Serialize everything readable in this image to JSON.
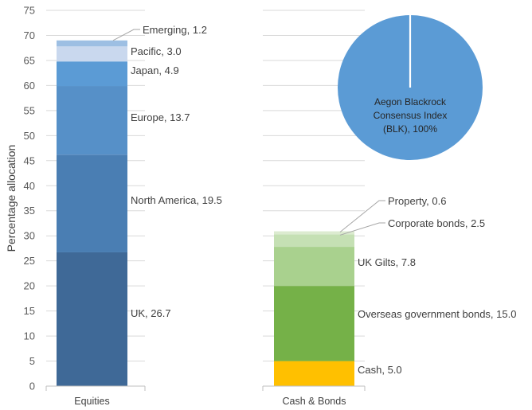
{
  "chart_data": [
    {
      "type": "bar",
      "stacked": true,
      "ylabel": "Percentage allocation",
      "ylim": [
        0,
        75
      ],
      "yticks": [
        "0",
        "5",
        "10",
        "15",
        "20",
        "25",
        "30",
        "35",
        "40",
        "45",
        "50",
        "55",
        "60",
        "65",
        "70",
        "75"
      ],
      "grid": true,
      "categories": [
        "Equities",
        "Cash & Bonds"
      ],
      "series": [
        {
          "name": "UK",
          "label": "UK, 26.7",
          "category": "Equities",
          "value": 26.7,
          "color": "#3F6997"
        },
        {
          "name": "North America",
          "label": "North America, 19.5",
          "category": "Equities",
          "value": 19.5,
          "color": "#4A7EB3"
        },
        {
          "name": "Europe",
          "label": "Europe, 13.7",
          "category": "Equities",
          "value": 13.7,
          "color": "#5690C8"
        },
        {
          "name": "Japan",
          "label": "Japan, 4.9",
          "category": "Equities",
          "value": 4.9,
          "color": "#5B9BD5"
        },
        {
          "name": "Pacific",
          "label": "Pacific, 3.0",
          "category": "Equities",
          "value": 3.0,
          "color": "#C9D8EE"
        },
        {
          "name": "Emerging",
          "label": "Emerging, 1.2",
          "category": "Equities",
          "value": 1.2,
          "color": "#9DBFE3"
        },
        {
          "name": "Cash",
          "label": "Cash, 5.0",
          "category": "Cash & Bonds",
          "value": 5.0,
          "color": "#FFC000"
        },
        {
          "name": "Overseas government bonds",
          "label": "Overseas government bonds, 15.0",
          "category": "Cash & Bonds",
          "value": 15.0,
          "color": "#75B148"
        },
        {
          "name": "UK Gilts",
          "label": "UK Gilts, 7.8",
          "category": "Cash & Bonds",
          "value": 7.8,
          "color": "#A9D18E"
        },
        {
          "name": "Corporate bonds",
          "label": "Corporate bonds, 2.5",
          "category": "Cash & Bonds",
          "value": 2.5,
          "color": "#C5E0B4"
        },
        {
          "name": "Property",
          "label": "Property, 0.6",
          "category": "Cash & Bonds",
          "value": 0.6,
          "color": "#DCEBD0"
        }
      ]
    },
    {
      "type": "pie",
      "slices": [
        {
          "name": "Aegon Blackrock Consensus Index (BLK)",
          "value": 100,
          "label_lines": [
            "Aegon Blackrock",
            "Consensus Index",
            "(BLK), 100%"
          ],
          "color": "#5B9BD5"
        }
      ]
    }
  ]
}
